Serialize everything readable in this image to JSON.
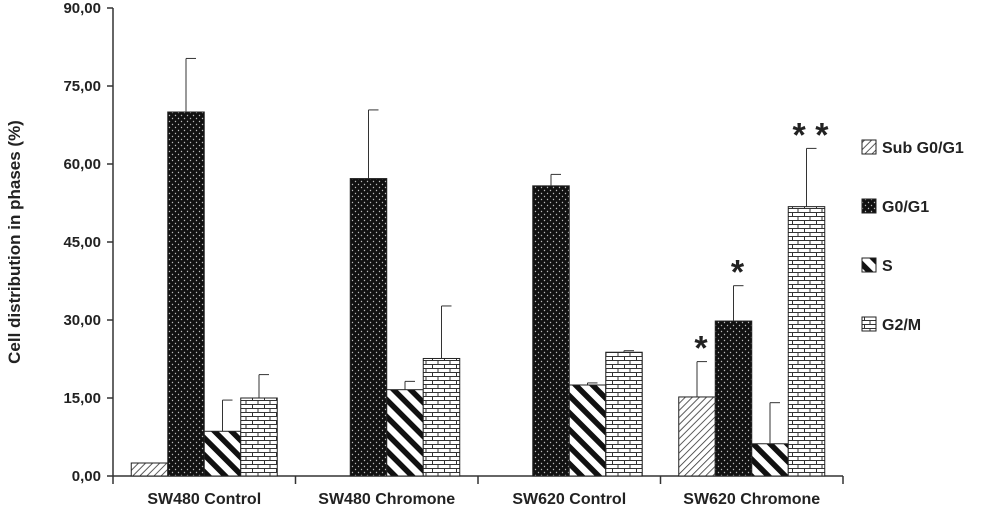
{
  "chart_data": {
    "type": "bar",
    "title": "",
    "xlabel": "",
    "ylabel": "Cell distribution in phases (%)",
    "ylim": [
      0,
      90
    ],
    "yticks": [
      "0,00",
      "15,00",
      "30,00",
      "45,00",
      "60,00",
      "75,00",
      "90,00"
    ],
    "ytick_values": [
      0,
      15,
      30,
      45,
      60,
      75,
      90
    ],
    "grid": false,
    "legend_position": "right",
    "categories": [
      "SW480 Control",
      "SW480 Chromone",
      "SW620 Control",
      "SW620 Chromone"
    ],
    "series": [
      {
        "name": "Sub G0/G1",
        "pattern": "diagonal-fine",
        "values": [
          2.5,
          0,
          0,
          15.2
        ],
        "errors": [
          0,
          0,
          0,
          6.8
        ]
      },
      {
        "name": "G0/G1",
        "pattern": "dots-dark",
        "values": [
          70.0,
          57.2,
          55.8,
          29.8
        ],
        "errors": [
          10.3,
          13.2,
          2.2,
          6.8
        ]
      },
      {
        "name": "S",
        "pattern": "diagonal-bold",
        "values": [
          8.6,
          16.6,
          17.5,
          6.2
        ],
        "errors": [
          6.0,
          1.6,
          0.4,
          7.9
        ]
      },
      {
        "name": "G2/M",
        "pattern": "brick",
        "values": [
          15.0,
          22.6,
          23.8,
          51.8
        ],
        "errors": [
          4.5,
          10.1,
          0.3,
          11.2
        ]
      }
    ],
    "annotations": [
      {
        "category": 3,
        "series": 0,
        "text": "*"
      },
      {
        "category": 3,
        "series": 1,
        "text": "*"
      },
      {
        "category": 3,
        "series": 3,
        "text": "* *"
      }
    ]
  }
}
